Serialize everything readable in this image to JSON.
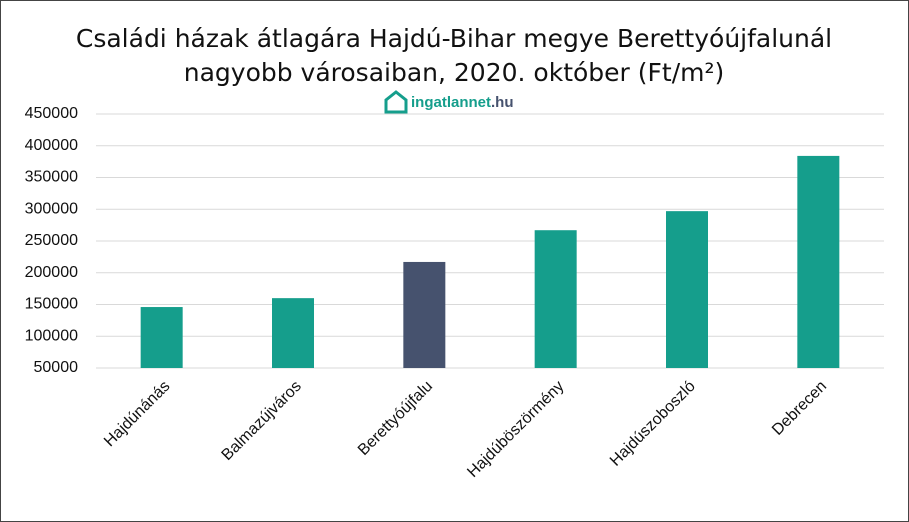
{
  "chart_data": {
    "type": "bar",
    "title": [
      "Családi házak átlagára Hajdú-Bihar megye Berettyóújfalunál",
      "nagyobb városaiban, 2020. október (Ft/m²)"
    ],
    "logo_name": "ingatlannet",
    "logo_tld": ".hu",
    "categories": [
      "Hajdúnánás",
      "Balmazújváros",
      "Berettyóújfalu",
      "Hajdúböszörmény",
      "Hajdúszoboszló",
      "Debrecen"
    ],
    "values": [
      146000,
      160000,
      217000,
      267000,
      297000,
      384000
    ],
    "colors": [
      "#159e8c",
      "#159e8c",
      "#46526e",
      "#159e8c",
      "#159e8c",
      "#159e8c"
    ],
    "ylim": [
      50000,
      450000
    ],
    "yticks": [
      50000,
      100000,
      150000,
      200000,
      250000,
      300000,
      350000,
      400000,
      450000
    ],
    "grid": true
  }
}
